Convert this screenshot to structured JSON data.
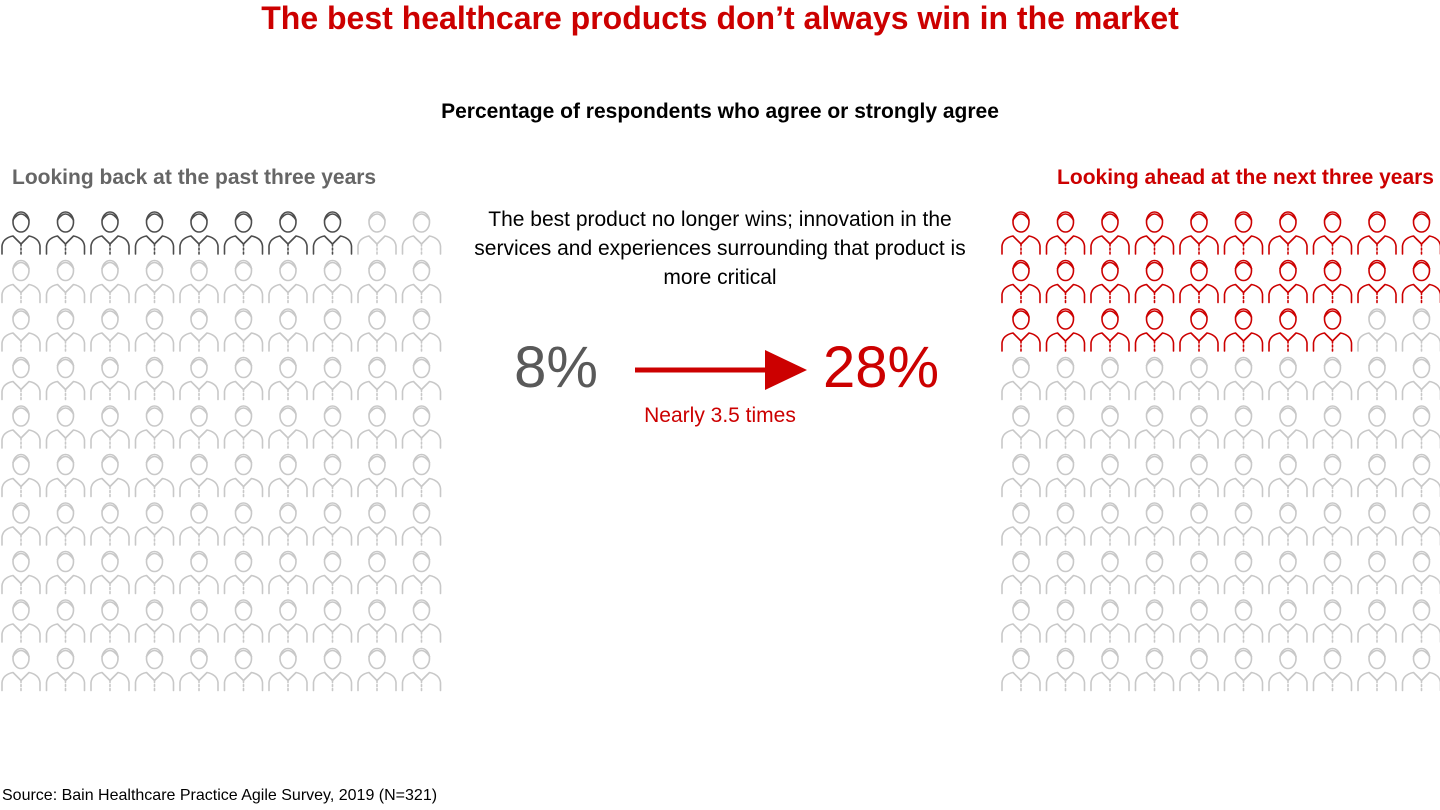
{
  "chart_data": {
    "type": "waffle",
    "title": "The best healthcare products don’t always win in the market",
    "subtitle": "Percentage of respondents who agree or strongly agree",
    "annotation": "The best product no longer wins; innovation in the services and experiences surrounding that product is more critical",
    "change_label": "Nearly 3.5 times",
    "source": "Source: Bain Healthcare Practice Agile Survey, 2019 (N=321)",
    "empty_color": "#c8c8c8",
    "series": [
      {
        "name": "Looking back at the past three years",
        "color": "#4d4d4d",
        "values": [
          8
        ],
        "value_labels": [
          "8%"
        ]
      },
      {
        "name": "Looking ahead at the next three years",
        "color": "#cc0000",
        "values": [
          28
        ],
        "value_labels": [
          "28%"
        ]
      }
    ]
  }
}
